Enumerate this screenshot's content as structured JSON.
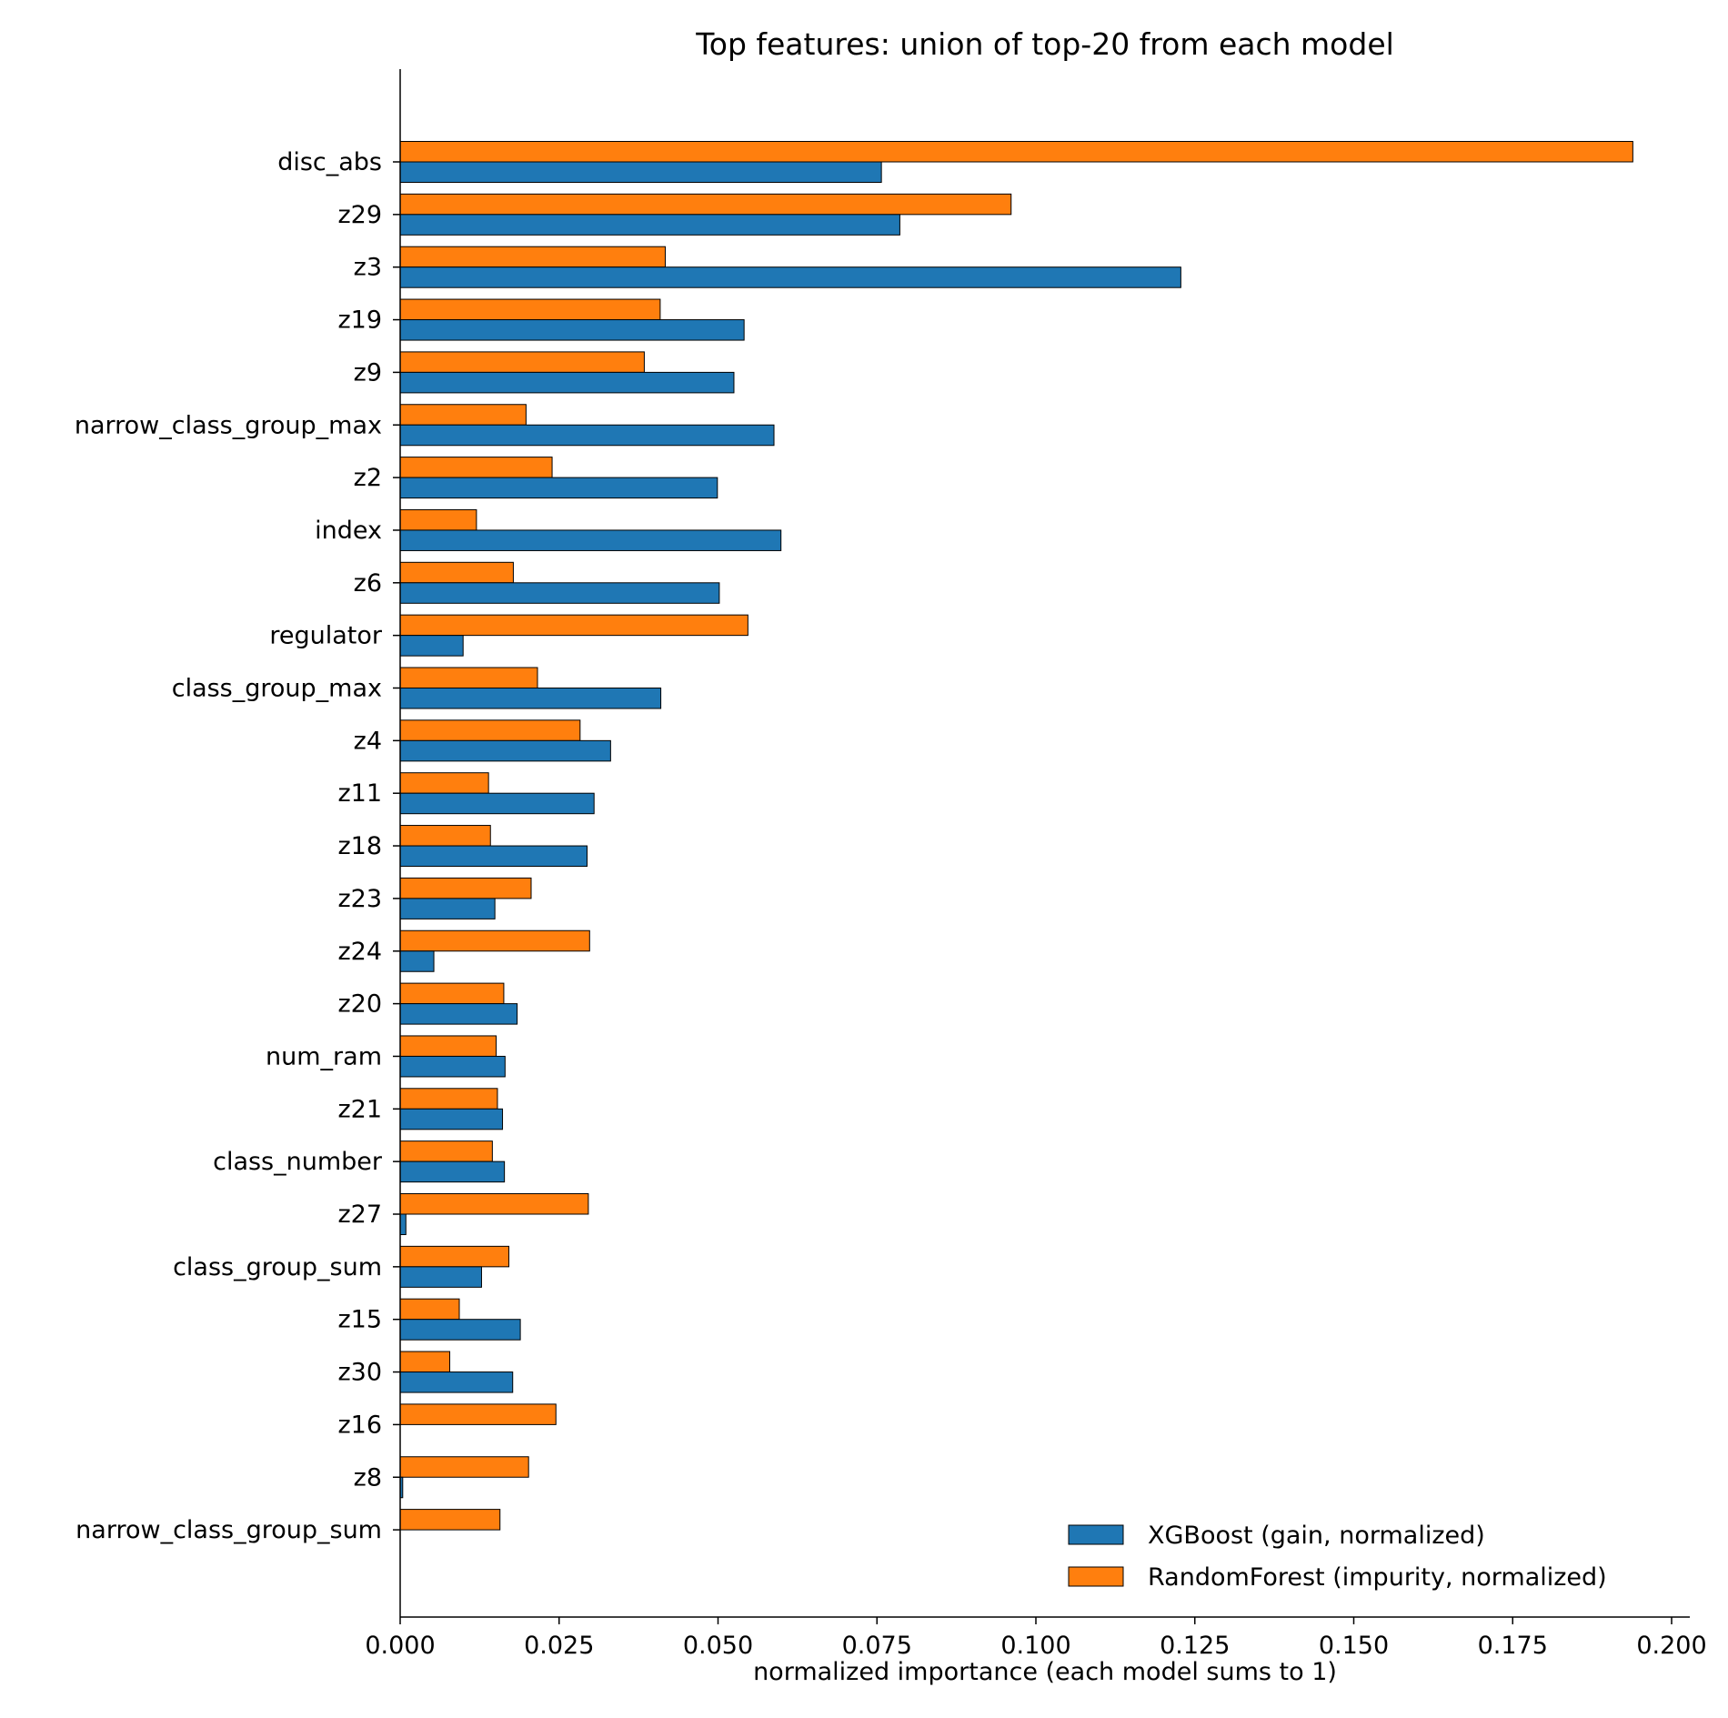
{
  "chart_data": {
    "type": "bar",
    "orientation": "horizontal",
    "title": "Top features: union of top-20 from each model",
    "xlabel": "normalized importance (each model sums to 1)",
    "ylabel": "",
    "xlim": [
      0,
      0.2
    ],
    "xticks": [
      "0.000",
      "0.025",
      "0.050",
      "0.075",
      "0.100",
      "0.125",
      "0.150",
      "0.175",
      "0.200"
    ],
    "grid": false,
    "legend_position": "bottom-right",
    "categories": [
      "disc_abs",
      "z29",
      "z3",
      "z19",
      "z9",
      "narrow_class_group_max",
      "z2",
      "index",
      "z6",
      "regulator",
      "class_group_max",
      "z4",
      "z11",
      "z18",
      "z23",
      "z24",
      "z20",
      "num_ram",
      "z21",
      "class_number",
      "z27",
      "class_group_sum",
      "z15",
      "z30",
      "z16",
      "z8",
      "narrow_class_group_sum"
    ],
    "series": [
      {
        "name": "XGBoost (gain, normalized)",
        "color": "#1f77b4",
        "values": [
          0.0757,
          0.0786,
          0.1228,
          0.0541,
          0.0525,
          0.0588,
          0.0499,
          0.0599,
          0.0502,
          0.0099,
          0.041,
          0.0331,
          0.0305,
          0.0294,
          0.0149,
          0.0053,
          0.0184,
          0.0165,
          0.0161,
          0.0164,
          0.0009,
          0.0128,
          0.0189,
          0.0177,
          0.0,
          0.0004,
          0.0
        ]
      },
      {
        "name": "RandomForest (impurity, normalized)",
        "color": "#ff7f0e",
        "values": [
          0.1939,
          0.0961,
          0.0417,
          0.0409,
          0.0384,
          0.0198,
          0.0239,
          0.012,
          0.0178,
          0.0547,
          0.0216,
          0.0283,
          0.0139,
          0.0142,
          0.0206,
          0.0298,
          0.0163,
          0.0151,
          0.0153,
          0.0145,
          0.0296,
          0.0171,
          0.0093,
          0.0078,
          0.0245,
          0.0202,
          0.0157
        ]
      }
    ]
  }
}
